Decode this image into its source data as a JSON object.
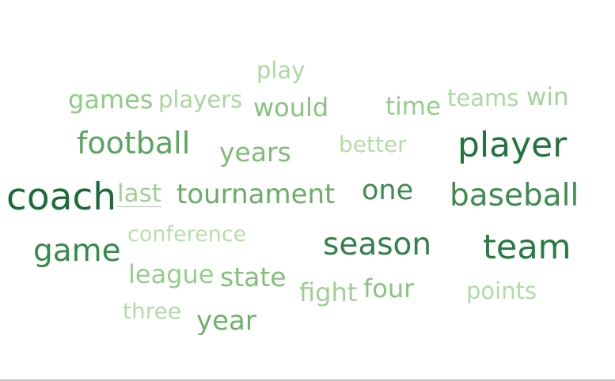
{
  "chart_data": {
    "type": "wordcloud",
    "words": [
      {
        "text": "coach",
        "weight": 10,
        "color": "#1e6b3a"
      },
      {
        "text": "player",
        "weight": 9,
        "color": "#24733f"
      },
      {
        "text": "team",
        "weight": 9,
        "color": "#267a43"
      },
      {
        "text": "season",
        "weight": 8,
        "color": "#347f4b"
      },
      {
        "text": "game",
        "weight": 8,
        "color": "#358a4b"
      },
      {
        "text": "baseball",
        "weight": 8,
        "color": "#3f8c50"
      },
      {
        "text": "one",
        "weight": 7,
        "color": "#3f8a4f"
      },
      {
        "text": "football",
        "weight": 7,
        "color": "#5aa55f"
      },
      {
        "text": "tournament",
        "weight": 6,
        "color": "#6aad66"
      },
      {
        "text": "year",
        "weight": 6,
        "color": "#6fb06a"
      },
      {
        "text": "years",
        "weight": 5,
        "color": "#7fbe77"
      },
      {
        "text": "state",
        "weight": 5,
        "color": "#82c07a"
      },
      {
        "text": "would",
        "weight": 5,
        "color": "#86c47e"
      },
      {
        "text": "four",
        "weight": 5,
        "color": "#88c47f"
      },
      {
        "text": "games",
        "weight": 4,
        "color": "#8fca86"
      },
      {
        "text": "time",
        "weight": 4,
        "color": "#95cd8b"
      },
      {
        "text": "league",
        "weight": 4,
        "color": "#96cd8c"
      },
      {
        "text": "fight",
        "weight": 4,
        "color": "#9dd092"
      },
      {
        "text": "last",
        "weight": 4,
        "color": "#9ed294"
      },
      {
        "text": "win",
        "weight": 4,
        "color": "#a2d497"
      },
      {
        "text": "players",
        "weight": 3,
        "color": "#a8d79c"
      },
      {
        "text": "play",
        "weight": 3,
        "color": "#acd9a0"
      },
      {
        "text": "teams",
        "weight": 3,
        "color": "#acd9a0"
      },
      {
        "text": "points",
        "weight": 3,
        "color": "#b0dba4"
      },
      {
        "text": "three",
        "weight": 3,
        "color": "#b2dca6"
      },
      {
        "text": "better",
        "weight": 3,
        "color": "#b4dda8"
      },
      {
        "text": "conference",
        "weight": 2,
        "color": "#b8dfac"
      }
    ]
  }
}
